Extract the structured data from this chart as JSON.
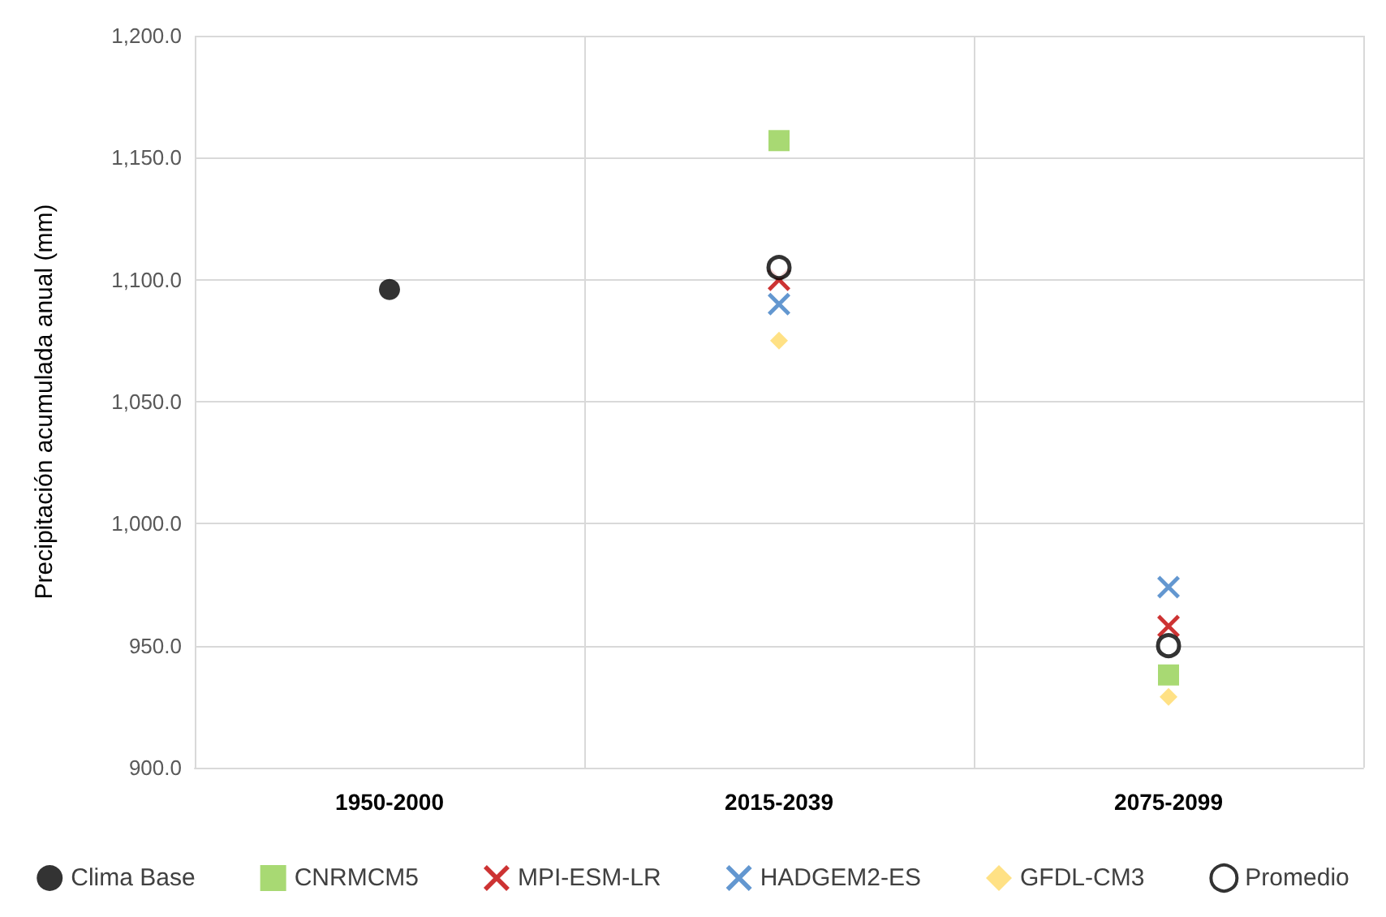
{
  "chart_data": {
    "type": "scatter",
    "ylabel": "Precipitación acumulada anual (mm)",
    "categories": [
      "1950-2000",
      "2015-2039",
      "2075-2099"
    ],
    "ylim": [
      900,
      1200
    ],
    "yticks": [
      {
        "value": 900,
        "label": "900.0"
      },
      {
        "value": 950,
        "label": "950.0"
      },
      {
        "value": 1000,
        "label": "1,000.0"
      },
      {
        "value": 1050,
        "label": "1,050.0"
      },
      {
        "value": 1100,
        "label": "1,100.0"
      },
      {
        "value": 1150,
        "label": "1,150.0"
      },
      {
        "value": 1200,
        "label": "1,200.0"
      }
    ],
    "grid": true,
    "legend": "bottom",
    "series": [
      {
        "name": "Clima Base",
        "color": "#000000",
        "marker": "circle",
        "values": [
          1096,
          null,
          null
        ]
      },
      {
        "name": "CNRMCM5",
        "color": "#92d050",
        "marker": "square",
        "values": [
          null,
          1157,
          938
        ]
      },
      {
        "name": "MPI-ESM-LR",
        "color": "#c00000",
        "marker": "cross",
        "values": [
          null,
          1100,
          958
        ]
      },
      {
        "name": "HADGEM2-ES",
        "color": "#3c7dc4",
        "marker": "cross",
        "values": [
          null,
          1090,
          974
        ]
      },
      {
        "name": "GFDL-CM3",
        "color": "#ffd966",
        "marker": "diamond",
        "values": [
          null,
          1075,
          929
        ]
      },
      {
        "name": "Promedio",
        "color": "#000000",
        "marker": "circle",
        "values": [
          null,
          1105,
          950
        ]
      }
    ]
  }
}
